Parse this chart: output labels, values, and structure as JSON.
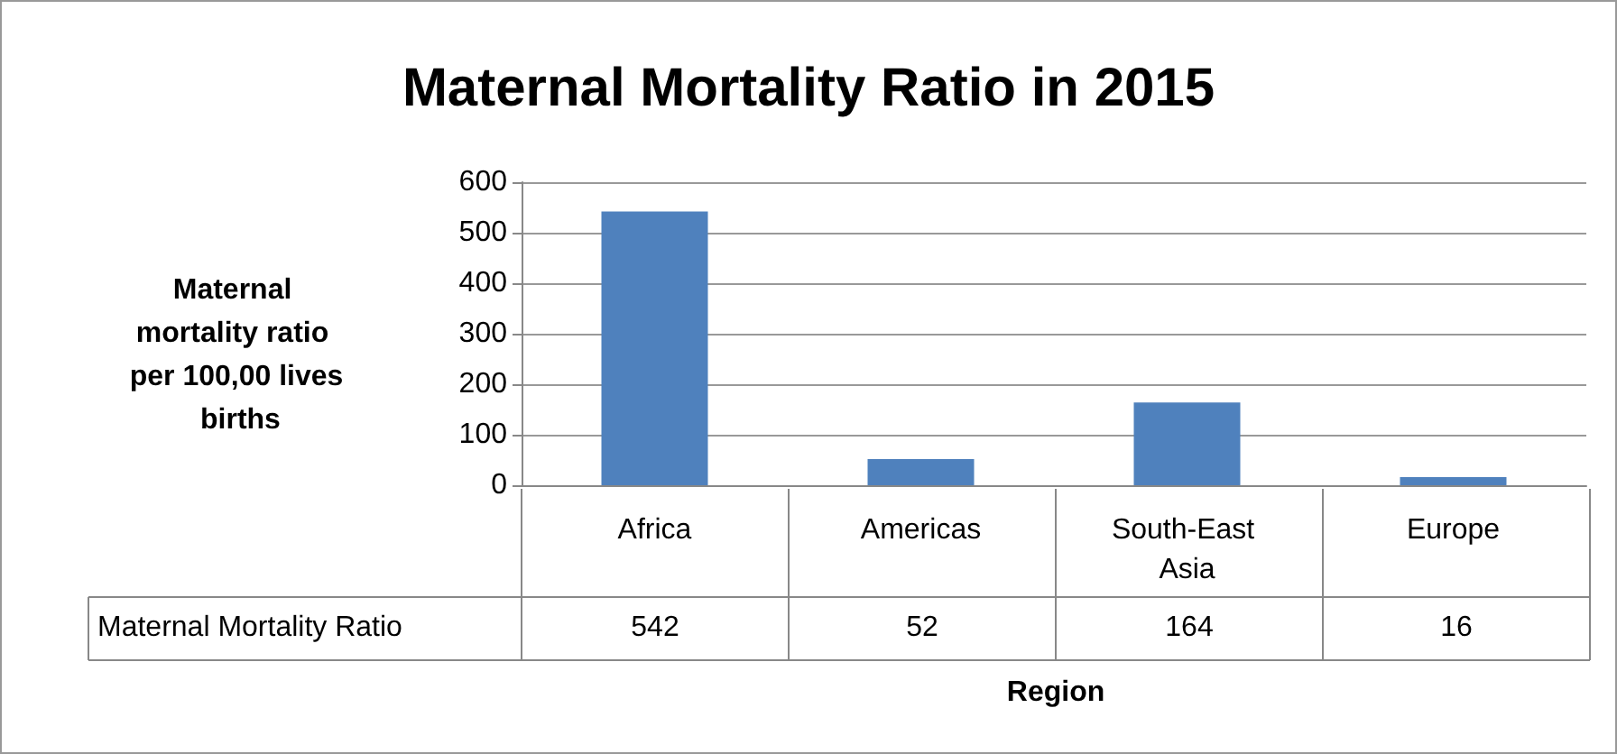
{
  "chart_data": {
    "type": "bar",
    "title": "Maternal Mortality Ratio in 2015",
    "ylabel": "Maternal mortality ratio per 100,00 lives births",
    "xlabel": "Region",
    "categories": [
      "Africa",
      "Americas",
      "South-East Asia",
      "Europe"
    ],
    "series": [
      {
        "name": "Maternal Mortality Ratio",
        "color": "#4f81bd",
        "values": [
          542,
          52,
          164,
          16
        ]
      }
    ],
    "ylim": [
      0,
      600
    ],
    "yticks": [
      0,
      100,
      200,
      300,
      400,
      500,
      600
    ],
    "grid": "y",
    "legend": false,
    "data_labels": true
  }
}
